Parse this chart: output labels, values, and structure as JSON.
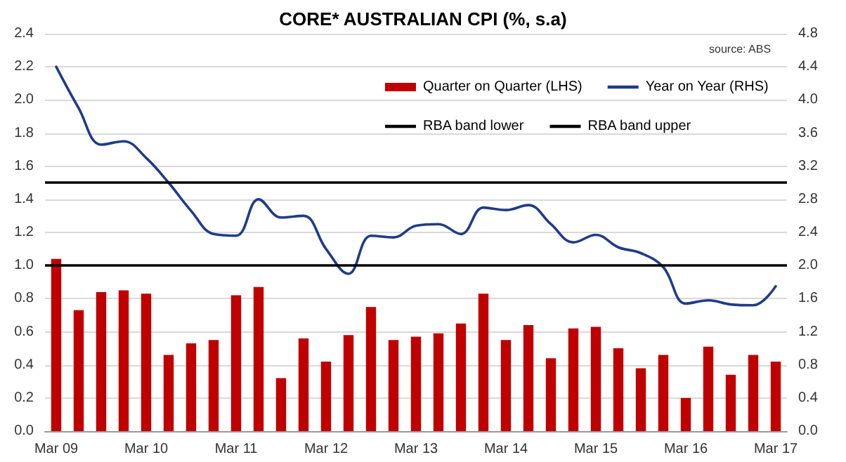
{
  "chart_data": {
    "type": "bar",
    "title": "CORE* AUSTRALIAN CPI (%, s.a)",
    "annotations": [
      "source: ABS"
    ],
    "categories": [
      "Mar 09",
      null,
      null,
      null,
      "Mar 10",
      null,
      null,
      null,
      "Mar 11",
      null,
      null,
      null,
      "Mar 12",
      null,
      null,
      null,
      "Mar 13",
      null,
      null,
      null,
      "Mar 14",
      null,
      null,
      null,
      "Mar 15",
      null,
      null,
      null,
      "Mar 16",
      null,
      null,
      null,
      "Mar 17"
    ],
    "series": [
      {
        "name": "Quarter on Quarter (LHS)",
        "color": "#c00000",
        "values": [
          1.04,
          0.73,
          0.84,
          0.85,
          0.83,
          0.46,
          0.53,
          0.55,
          0.82,
          0.87,
          0.32,
          0.56,
          0.42,
          0.58,
          0.75,
          0.55,
          0.57,
          0.59,
          0.65,
          0.83,
          0.55,
          0.64,
          0.44,
          0.62,
          0.63,
          0.5,
          0.38,
          0.46,
          0.2,
          0.51,
          0.34,
          0.46,
          0.42
        ]
      },
      {
        "name": "Year on Year (RHS)",
        "type": "line",
        "axis": "y2",
        "color": "#1f3c88",
        "values": [
          4.4,
          3.9,
          3.46,
          3.5,
          3.3,
          3.0,
          2.66,
          2.38,
          2.36,
          2.8,
          2.58,
          2.6,
          2.2,
          1.9,
          2.36,
          2.34,
          2.48,
          2.5,
          2.38,
          2.7,
          2.67,
          2.73,
          2.5,
          2.28,
          2.37,
          2.22,
          2.15,
          1.98,
          1.54,
          1.58,
          1.53,
          1.52,
          1.75
        ]
      }
    ],
    "ref_lines": [
      {
        "axis": "y2",
        "value": 2,
        "label": "RBA band lower",
        "color": "#000000"
      },
      {
        "axis": "y2",
        "value": 3,
        "label": "RBA band upper",
        "color": "#000000"
      }
    ],
    "ylim": [
      0,
      2.4
    ],
    "yticks": [
      {
        "value": 0,
        "label": "0.0"
      },
      {
        "value": 0.2,
        "label": "0.2"
      },
      {
        "value": 0.4,
        "label": "0.4"
      },
      {
        "value": 0.6,
        "label": "0.6"
      },
      {
        "value": 0.8,
        "label": "0.8"
      },
      {
        "value": 1,
        "label": "1.0"
      },
      {
        "value": 1.2,
        "label": "1.2"
      },
      {
        "value": 1.4,
        "label": "1.4"
      },
      {
        "value": 1.6,
        "label": "1.6"
      },
      {
        "value": 1.8,
        "label": "1.8"
      },
      {
        "value": 2,
        "label": "2.0"
      },
      {
        "value": 2.2,
        "label": "2.2"
      },
      {
        "value": 2.4,
        "label": "2.4"
      }
    ],
    "y2lim": [
      0,
      4.8
    ],
    "y2ticks": [
      {
        "value": 0,
        "label": "0.0"
      },
      {
        "value": 0.4,
        "label": "0.4"
      },
      {
        "value": 0.8,
        "label": "0.8"
      },
      {
        "value": 1.2,
        "label": "1.2"
      },
      {
        "value": 1.6,
        "label": "1.6"
      },
      {
        "value": 2,
        "label": "2.0"
      },
      {
        "value": 2.4,
        "label": "2.4"
      },
      {
        "value": 2.8,
        "label": "2.8"
      },
      {
        "value": 3.2,
        "label": "3.2"
      },
      {
        "value": 3.6,
        "label": "3.6"
      },
      {
        "value": 4,
        "label": "4.0"
      },
      {
        "value": 4.4,
        "label": "4.4"
      },
      {
        "value": 4.8,
        "label": "4.8"
      }
    ],
    "grid": "y",
    "legend": "top right",
    "marker": "none",
    "line_style": "solid"
  }
}
